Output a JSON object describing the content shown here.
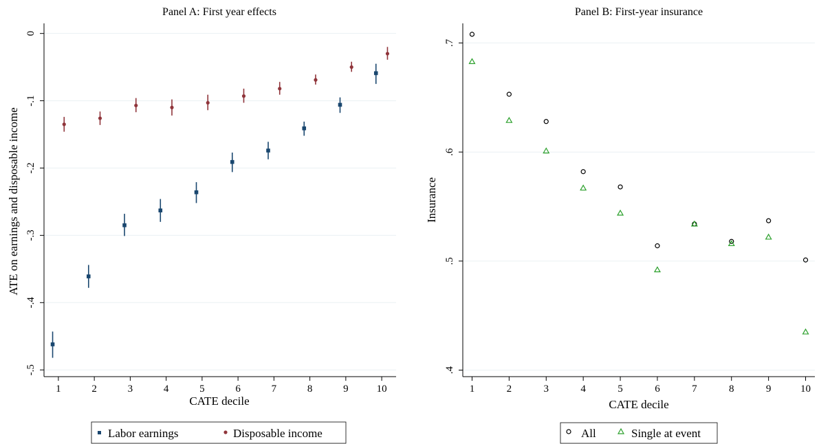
{
  "chart_data": [
    {
      "type": "scatter",
      "title": "Panel A: First year effects",
      "xlabel": "CATE decile",
      "ylabel": "ATE on earnings and disposable income",
      "xlim": [
        0.6,
        10.4
      ],
      "ylim": [
        -0.51,
        0.015
      ],
      "x_ticks": [
        "1",
        "2",
        "3",
        "4",
        "5",
        "6",
        "7",
        "8",
        "9",
        "10"
      ],
      "y_ticks": [
        {
          "value": 0,
          "label": "0"
        },
        {
          "value": -0.1,
          "label": "-.1"
        },
        {
          "value": -0.2,
          "label": "-.2"
        },
        {
          "value": -0.3,
          "label": "-.3"
        },
        {
          "value": -0.4,
          "label": "-.4"
        },
        {
          "value": -0.5,
          "label": "-.5"
        }
      ],
      "grid": true,
      "legend_position": "bottom",
      "series": [
        {
          "name": "Labor earnings",
          "color": "#1a476f",
          "marker": "square",
          "x": [
            1,
            2,
            3,
            4,
            5,
            6,
            7,
            8,
            9,
            10
          ],
          "y": [
            -0.462,
            -0.361,
            -0.285,
            -0.263,
            -0.236,
            -0.191,
            -0.174,
            -0.141,
            -0.106,
            -0.059
          ],
          "ci_low": [
            -0.482,
            -0.378,
            -0.301,
            -0.28,
            -0.252,
            -0.206,
            -0.187,
            -0.152,
            -0.118,
            -0.075
          ],
          "ci_high": [
            -0.443,
            -0.344,
            -0.268,
            -0.246,
            -0.221,
            -0.177,
            -0.161,
            -0.131,
            -0.095,
            -0.045
          ]
        },
        {
          "name": "Disposable income",
          "color": "#90353b",
          "marker": "circle",
          "x": [
            1,
            2,
            3,
            4,
            5,
            6,
            7,
            8,
            9,
            10
          ],
          "y": [
            -0.135,
            -0.126,
            -0.107,
            -0.11,
            -0.103,
            -0.093,
            -0.082,
            -0.069,
            -0.05,
            -0.03
          ],
          "ci_low": [
            -0.146,
            -0.136,
            -0.117,
            -0.122,
            -0.114,
            -0.103,
            -0.091,
            -0.076,
            -0.057,
            -0.039
          ],
          "ci_high": [
            -0.124,
            -0.116,
            -0.096,
            -0.098,
            -0.091,
            -0.082,
            -0.072,
            -0.061,
            -0.042,
            -0.02
          ]
        }
      ]
    },
    {
      "type": "scatter",
      "title": "Panel B: First-year insurance",
      "xlabel": "CATE decile",
      "ylabel": "Insurance",
      "xlim": [
        0.75,
        10.25
      ],
      "ylim": [
        0.394,
        0.718
      ],
      "x_ticks": [
        "1",
        "2",
        "3",
        "4",
        "5",
        "6",
        "7",
        "8",
        "9",
        "10"
      ],
      "y_ticks": [
        {
          "value": 0.4,
          "label": ".4"
        },
        {
          "value": 0.5,
          "label": ".5"
        },
        {
          "value": 0.6,
          "label": ".6"
        },
        {
          "value": 0.7,
          "label": ".7"
        }
      ],
      "grid": true,
      "legend_position": "bottom",
      "series": [
        {
          "name": "All",
          "color": "#000000",
          "marker": "hollow-circle",
          "x": [
            1,
            2,
            3,
            4,
            5,
            6,
            7,
            8,
            9,
            10
          ],
          "y": [
            0.708,
            0.653,
            0.628,
            0.582,
            0.568,
            0.514,
            0.534,
            0.518,
            0.537,
            0.501
          ]
        },
        {
          "name": "Single at event",
          "color": "#2ca02c",
          "marker": "hollow-triangle",
          "x": [
            1,
            2,
            3,
            4,
            5,
            6,
            7,
            8,
            9,
            10
          ],
          "y": [
            0.683,
            0.629,
            0.601,
            0.567,
            0.544,
            0.492,
            0.534,
            0.516,
            0.522,
            0.435
          ]
        }
      ]
    }
  ]
}
